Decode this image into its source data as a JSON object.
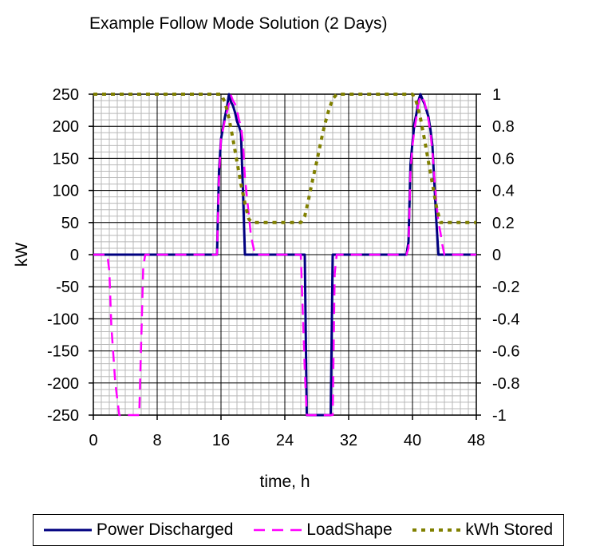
{
  "chart_data": {
    "type": "line",
    "title": "Example Follow Mode Solution (2 Days)",
    "xlabel": "time, h",
    "ylabel": "kW",
    "y2label": "",
    "xlim": [
      0,
      48
    ],
    "ylim": [
      -250,
      250
    ],
    "y2lim": [
      -1,
      1
    ],
    "x_ticks": [
      0,
      8,
      16,
      24,
      32,
      40,
      48
    ],
    "x_tick_labels": [
      "0",
      "8",
      "16",
      "24",
      "32",
      "40",
      "48"
    ],
    "y_ticks": [
      250,
      200,
      150,
      100,
      50,
      0,
      -50,
      -100,
      -150,
      -200,
      -250
    ],
    "y_tick_labels": [
      "250",
      "200",
      "150",
      "100",
      "50",
      "0",
      "-50",
      "-100",
      "-150",
      "-200",
      "-250"
    ],
    "y2_ticks": [
      1,
      0.8,
      0.6,
      0.4,
      0.2,
      0,
      -0.2,
      -0.4,
      -0.6,
      -0.8,
      -1
    ],
    "y2_tick_labels": [
      "1",
      "0.8",
      "0.6",
      "0.4",
      "0.2",
      "0",
      "-0.2",
      "-0.4",
      "-0.6",
      "-0.8",
      "-1"
    ],
    "grid": true,
    "legend_position": "bottom",
    "series": [
      {
        "name": "Power Discharged",
        "color": "#000080",
        "dash": "solid",
        "axis": "left",
        "x": [
          0,
          15.5,
          15.75,
          16,
          16.5,
          16.75,
          17,
          17.25,
          17.5,
          17.75,
          18,
          18.25,
          18.5,
          18.75,
          19,
          19.25,
          26.5,
          26.75,
          29.75,
          30,
          39.25,
          39.5,
          39.75,
          40,
          40.25,
          40.5,
          40.75,
          41,
          41.25,
          41.5,
          41.75,
          42,
          42.25,
          42.5,
          42.75,
          43,
          43.25,
          48
        ],
        "y": [
          0,
          0,
          130,
          180,
          215,
          230,
          250,
          238,
          232,
          222,
          208,
          200,
          190,
          100,
          0,
          0,
          0,
          -250,
          -250,
          0,
          0,
          20,
          140,
          175,
          205,
          220,
          240,
          250,
          242,
          235,
          225,
          215,
          195,
          170,
          110,
          50,
          0,
          0
        ]
      },
      {
        "name": "LoadShape",
        "color": "#ff00ff",
        "dash": "dashed",
        "axis": "left",
        "x": [
          0,
          1.75,
          2,
          2.25,
          2.75,
          3.25,
          5.75,
          6.25,
          6.5,
          15.5,
          15.75,
          16,
          16.5,
          17,
          17.25,
          17.5,
          17.75,
          18,
          18.25,
          18.5,
          18.75,
          19,
          19.5,
          19.75,
          20,
          20.25,
          26,
          26.5,
          26.75,
          30,
          30.25,
          30.5,
          39.25,
          39.5,
          39.75,
          40,
          40.25,
          40.5,
          40.75,
          41,
          41.25,
          41.5,
          41.75,
          42,
          42.25,
          42.5,
          42.75,
          43,
          43.25,
          43.5,
          43.75,
          44,
          48
        ],
        "y": [
          0,
          0,
          -25,
          -110,
          -200,
          -250,
          -250,
          -20,
          0,
          0,
          120,
          180,
          210,
          235,
          248,
          240,
          235,
          225,
          210,
          200,
          175,
          120,
          60,
          30,
          15,
          0,
          0,
          -180,
          -250,
          -250,
          -30,
          0,
          0,
          10,
          130,
          170,
          195,
          215,
          235,
          248,
          243,
          238,
          225,
          210,
          190,
          160,
          120,
          80,
          50,
          35,
          15,
          0,
          0
        ]
      },
      {
        "name": "kWh Stored",
        "color": "#808000",
        "dash": "dotted",
        "axis": "right",
        "x": [
          0,
          16,
          16.5,
          17,
          17.5,
          18,
          18.5,
          19,
          19.5,
          20,
          20.5,
          26,
          26.5,
          27,
          27.5,
          28,
          28.5,
          29,
          29.5,
          30,
          30.5,
          40,
          40.5,
          41,
          41.5,
          42,
          42.5,
          43,
          43.5,
          44,
          48
        ],
        "y": [
          1,
          1,
          0.95,
          0.85,
          0.72,
          0.58,
          0.44,
          0.32,
          0.22,
          0.2,
          0.2,
          0.2,
          0.24,
          0.35,
          0.47,
          0.58,
          0.7,
          0.81,
          0.9,
          0.97,
          1,
          1,
          0.95,
          0.85,
          0.72,
          0.58,
          0.44,
          0.3,
          0.2,
          0.2,
          0.2
        ]
      }
    ]
  }
}
